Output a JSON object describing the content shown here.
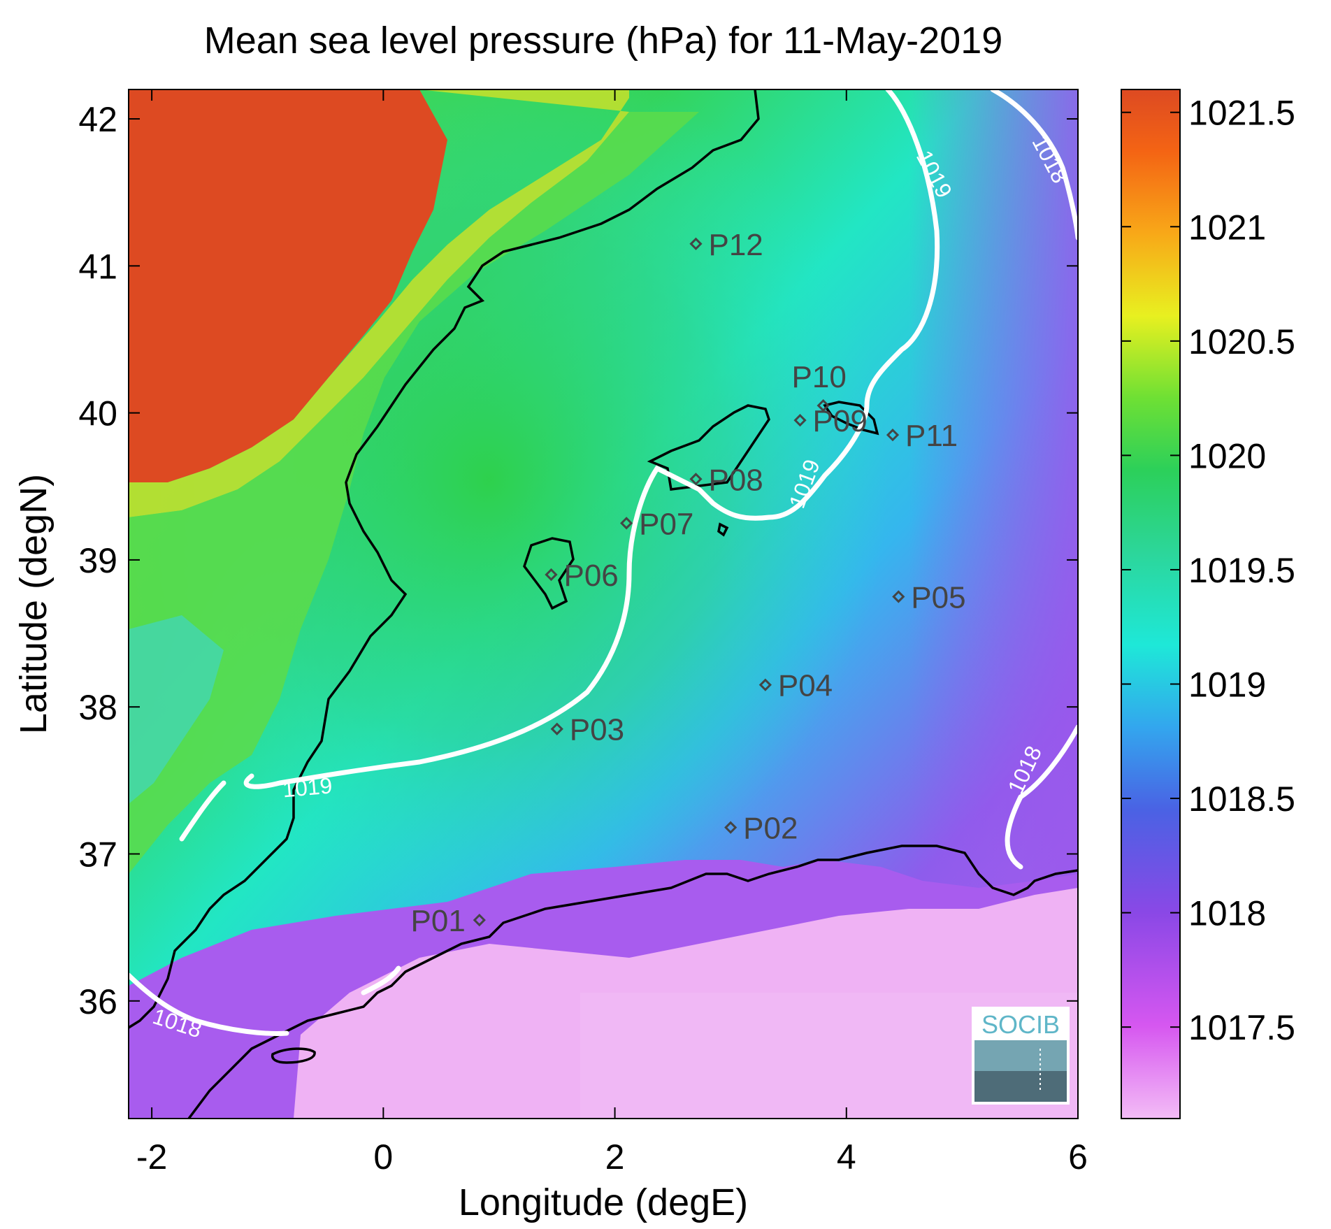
{
  "title": "Mean sea level pressure (hPa) for 11-May-2019",
  "xlabel": "Longitude (degE)",
  "ylabel": "Latitude (degN)",
  "logo": "SOCIB",
  "colors": {
    "land_high": "#dd4a22",
    "sea_green": "#36d24a",
    "sea_cyan": "#1ee8d0",
    "sea_blue": "#35b3ee",
    "sea_violet": "#9a55ec",
    "sea_pink": "#efb2f4",
    "contour": "#ffffff",
    "coast": "#000000",
    "station": "#444444"
  },
  "chart_data": {
    "type": "heatmap",
    "title": "Mean sea level pressure (hPa) for 11-May-2019",
    "xlabel": "Longitude (degE)",
    "ylabel": "Latitude (degN)",
    "xlim": [
      -2.2,
      6.0
    ],
    "ylim": [
      35.2,
      42.2
    ],
    "xticks": [
      "-2",
      "0",
      "2",
      "4",
      "6"
    ],
    "xtick_values": [
      -2,
      0,
      2,
      4,
      6
    ],
    "yticks": [
      "36",
      "37",
      "38",
      "39",
      "40",
      "41",
      "42"
    ],
    "ytick_values": [
      36,
      37,
      38,
      39,
      40,
      41,
      42
    ],
    "colorbar": {
      "range": [
        1017.1,
        1021.6
      ],
      "ticks": [
        "1017.5",
        "1018",
        "1018.5",
        "1019",
        "1019.5",
        "1020",
        "1020.5",
        "1021",
        "1021.5"
      ],
      "tick_values": [
        1017.5,
        1018,
        1018.5,
        1019,
        1019.5,
        1020,
        1020.5,
        1021,
        1021.5
      ]
    },
    "contour_labels": [
      {
        "text": "1019",
        "lon": 4.7,
        "lat": 41.6
      },
      {
        "text": "1018",
        "lon": 5.7,
        "lat": 41.7
      },
      {
        "text": "1019",
        "lon": 3.7,
        "lat": 39.5
      },
      {
        "text": "1019",
        "lon": -0.65,
        "lat": 37.4
      },
      {
        "text": "1018",
        "lon": 5.6,
        "lat": 37.55
      },
      {
        "text": "1018",
        "lon": -1.8,
        "lat": 35.8
      }
    ],
    "stations": [
      {
        "name": "P01",
        "lon": 0.83,
        "lat": 36.55
      },
      {
        "name": "P02",
        "lon": 3.0,
        "lat": 37.18
      },
      {
        "name": "P03",
        "lon": 1.5,
        "lat": 37.85
      },
      {
        "name": "P04",
        "lon": 3.3,
        "lat": 38.15
      },
      {
        "name": "P05",
        "lon": 4.45,
        "lat": 38.75
      },
      {
        "name": "P06",
        "lon": 1.45,
        "lat": 38.9
      },
      {
        "name": "P07",
        "lon": 2.1,
        "lat": 39.25
      },
      {
        "name": "P08",
        "lon": 2.7,
        "lat": 39.55
      },
      {
        "name": "P09",
        "lon": 3.6,
        "lat": 39.95
      },
      {
        "name": "P10",
        "lon": 3.8,
        "lat": 40.05
      },
      {
        "name": "P11",
        "lon": 4.4,
        "lat": 39.85
      },
      {
        "name": "P12",
        "lon": 2.7,
        "lat": 41.15
      }
    ]
  }
}
